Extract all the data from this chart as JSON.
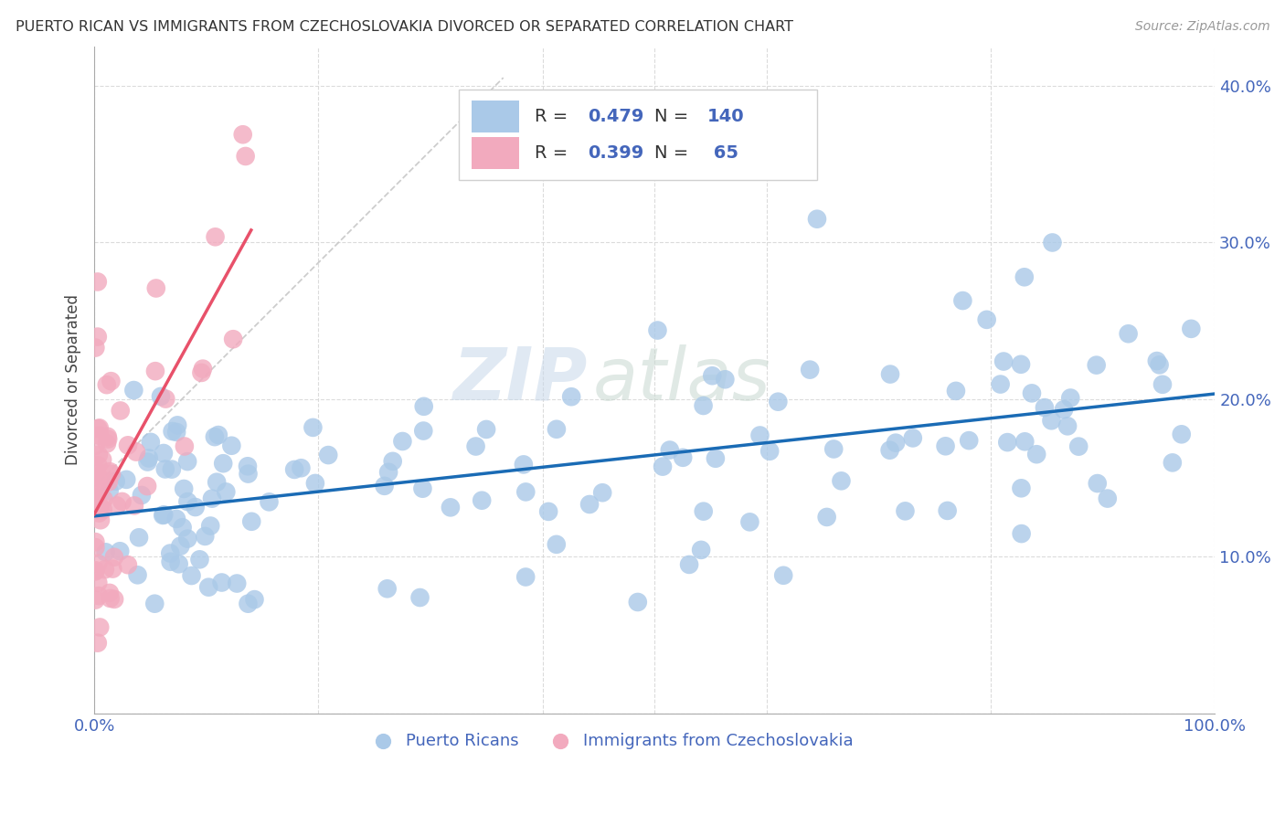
{
  "title": "PUERTO RICAN VS IMMIGRANTS FROM CZECHOSLOVAKIA DIVORCED OR SEPARATED CORRELATION CHART",
  "source": "Source: ZipAtlas.com",
  "ylabel": "Divorced or Separated",
  "xlim": [
    0.0,
    1.0
  ],
  "ylim": [
    0.0,
    0.425
  ],
  "blue_R": 0.479,
  "blue_N": 140,
  "pink_R": 0.399,
  "pink_N": 65,
  "blue_color": "#aac9e8",
  "pink_color": "#f2aabe",
  "blue_line_color": "#1a6bb5",
  "pink_line_color": "#e8516a",
  "watermark_zip": "ZIP",
  "watermark_atlas": "atlas",
  "background_color": "#ffffff",
  "legend_label_blue": "Puerto Ricans",
  "legend_label_pink": "Immigrants from Czechoslovakia",
  "ytick_vals": [
    0.0,
    0.1,
    0.2,
    0.3,
    0.4
  ],
  "ytick_labels": [
    "",
    "10.0%",
    "20.0%",
    "30.0%",
    "40.0%"
  ],
  "xtick_vals": [
    0.0,
    0.2,
    0.4,
    0.5,
    0.6,
    0.8,
    1.0
  ],
  "xtick_labels": [
    "0.0%",
    "",
    "",
    "",
    "",
    "",
    "100.0%"
  ]
}
